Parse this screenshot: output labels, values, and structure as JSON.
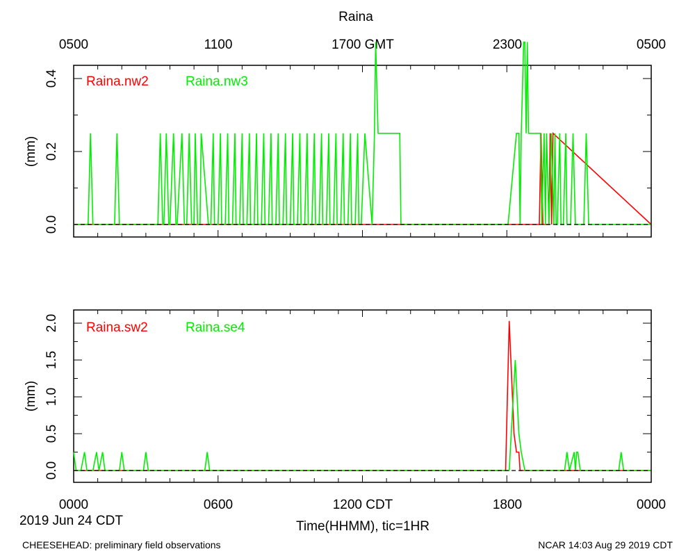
{
  "title": "Raina",
  "top_axis_ticks": [
    "0500",
    "1100",
    "1700 GMT",
    "2300",
    "0500"
  ],
  "bottom_axis_ticks": [
    "0000",
    "0600",
    "1200 CDT",
    "1800",
    "0000"
  ],
  "date_label": "2019 Jun 24 CDT",
  "xlabel": "Time(HHMM), tic=1HR",
  "footer_left": "CHEESEHEAD: preliminary field observations",
  "footer_right": "NCAR 14:03 Aug 29 2019 CDT",
  "colors": {
    "red": "#ff0000",
    "green": "#00ee00"
  },
  "chart_data": [
    {
      "type": "line",
      "ylabel": "(mm)",
      "xunit": "hours since 0000 CDT",
      "xlim": [
        0,
        24
      ],
      "ylim": [
        -0.04,
        0.55
      ],
      "yticks": [
        0.0,
        0.2,
        0.4
      ],
      "ytick_labels": [
        "0.0",
        "0.2",
        "0.4"
      ],
      "series": [
        {
          "name": "Raina.nw2",
          "color": "#ff0000",
          "x": [
            0,
            19.35,
            19.42,
            19.5,
            19.75,
            19.8,
            19.86,
            19.92,
            24
          ],
          "y": [
            0,
            0,
            0.25,
            0,
            0,
            0.25,
            0,
            0.25,
            0
          ]
        },
        {
          "name": "Raina.nw3",
          "color": "#00ee00",
          "x": [
            0,
            0.6,
            0.7,
            0.8,
            1.7,
            1.8,
            1.9,
            3.5,
            3.6,
            3.7,
            3.75,
            3.85,
            3.95,
            4.0,
            4.15,
            4.25,
            4.3,
            4.5,
            4.6,
            4.7,
            4.8,
            4.9,
            5.0,
            5.05,
            5.15,
            5.25,
            5.3,
            5.6,
            5.7,
            5.8,
            5.85,
            6.0,
            6.1,
            6.15,
            6.3,
            6.4,
            6.45,
            6.6,
            6.7,
            6.75,
            6.9,
            7.0,
            7.05,
            7.2,
            7.3,
            7.35,
            7.5,
            7.6,
            7.65,
            7.8,
            7.9,
            7.95,
            8.1,
            8.2,
            8.25,
            8.4,
            8.5,
            8.55,
            8.7,
            8.8,
            8.85,
            9.0,
            9.1,
            9.15,
            9.3,
            9.4,
            9.45,
            9.6,
            9.7,
            9.75,
            9.9,
            10.0,
            10.05,
            10.2,
            10.3,
            10.35,
            10.5,
            10.6,
            10.65,
            10.8,
            10.9,
            10.95,
            11.1,
            11.2,
            11.25,
            11.4,
            11.5,
            11.55,
            11.7,
            11.8,
            11.85,
            11.95,
            12.1,
            12.4,
            12.5,
            12.55,
            12.65,
            12.72,
            13.55,
            13.6,
            18.0,
            18.05,
            18.4,
            18.45,
            18.5,
            18.55,
            18.6,
            18.7,
            18.75,
            18.8,
            18.85,
            18.9,
            19.05,
            19.4,
            19.45,
            19.55,
            19.6,
            19.65,
            19.75,
            19.85,
            19.95,
            20.0,
            20.05,
            20.1,
            20.2,
            20.25,
            20.35,
            20.45,
            20.5,
            20.65,
            20.75,
            20.85,
            21.2,
            21.3,
            21.4,
            24
          ],
          "y": [
            0,
            0,
            0.25,
            0,
            0,
            0.25,
            0,
            0,
            0.25,
            0,
            0,
            0.25,
            0,
            0,
            0.25,
            0,
            0,
            0.25,
            0,
            0,
            0.25,
            0,
            0,
            0.25,
            0,
            0,
            0.25,
            0,
            0,
            0.25,
            0,
            0,
            0.25,
            0,
            0,
            0.25,
            0,
            0,
            0.25,
            0,
            0,
            0.25,
            0,
            0,
            0.25,
            0,
            0,
            0.25,
            0,
            0,
            0.25,
            0,
            0,
            0.25,
            0,
            0,
            0.25,
            0,
            0,
            0.25,
            0,
            0,
            0.25,
            0,
            0,
            0.25,
            0,
            0,
            0.25,
            0,
            0,
            0.25,
            0,
            0,
            0.25,
            0,
            0,
            0.25,
            0,
            0,
            0.25,
            0,
            0,
            0.25,
            0,
            0,
            0.25,
            0,
            0,
            0.25,
            0,
            0,
            0.25,
            0,
            0.25,
            0.5,
            0.25,
            0.25,
            0.25,
            0,
            0,
            0,
            0.25,
            0.25,
            0.25,
            0,
            0.25,
            0.5,
            0.5,
            0.25,
            0.5,
            0.25,
            0.25,
            0.25,
            0,
            0.25,
            0,
            0.25,
            0,
            0.25,
            0,
            0.25,
            0,
            0,
            0.25,
            0,
            0,
            0.25,
            0,
            0,
            0.25,
            0,
            0,
            0.25,
            0,
            0
          ]
        }
      ]
    },
    {
      "type": "line",
      "ylabel": "(mm)",
      "xunit": "hours since 0000 CDT",
      "xlim": [
        0,
        24
      ],
      "ylim": [
        -0.15,
        2.2
      ],
      "yticks": [
        0.0,
        0.5,
        1.0,
        1.5,
        2.0
      ],
      "ytick_labels": [
        "0.0",
        "0.5",
        "1.0",
        "1.5",
        "2.0"
      ],
      "series": [
        {
          "name": "Raina.sw2",
          "color": "#ff0000",
          "x": [
            0,
            17.95,
            18.1,
            18.3,
            18.4,
            18.5,
            18.55,
            24
          ],
          "y": [
            0,
            0,
            2.03,
            0.5,
            0.25,
            0.25,
            0,
            0
          ]
        },
        {
          "name": "Raina.se4",
          "color": "#00ee00",
          "x": [
            0,
            0.1,
            0.3,
            0.45,
            0.55,
            0.8,
            0.95,
            1.05,
            1.2,
            1.3,
            1.9,
            2.0,
            2.1,
            2.9,
            3.0,
            3.1,
            5.45,
            5.55,
            5.65,
            18.1,
            18.35,
            18.5,
            18.6,
            18.75,
            20.4,
            20.5,
            20.6,
            20.8,
            20.85,
            20.9,
            20.95,
            21.05,
            22.65,
            22.75,
            22.85,
            24
          ],
          "y": [
            0.25,
            0,
            0,
            0.25,
            0,
            0,
            0.25,
            0,
            0.25,
            0,
            0,
            0.25,
            0,
            0,
            0.25,
            0,
            0,
            0.25,
            0,
            0,
            1.5,
            0.5,
            0.25,
            0,
            0,
            0.25,
            0,
            0.25,
            0,
            0.25,
            0.25,
            0,
            0,
            0.25,
            0,
            0
          ]
        }
      ]
    }
  ]
}
